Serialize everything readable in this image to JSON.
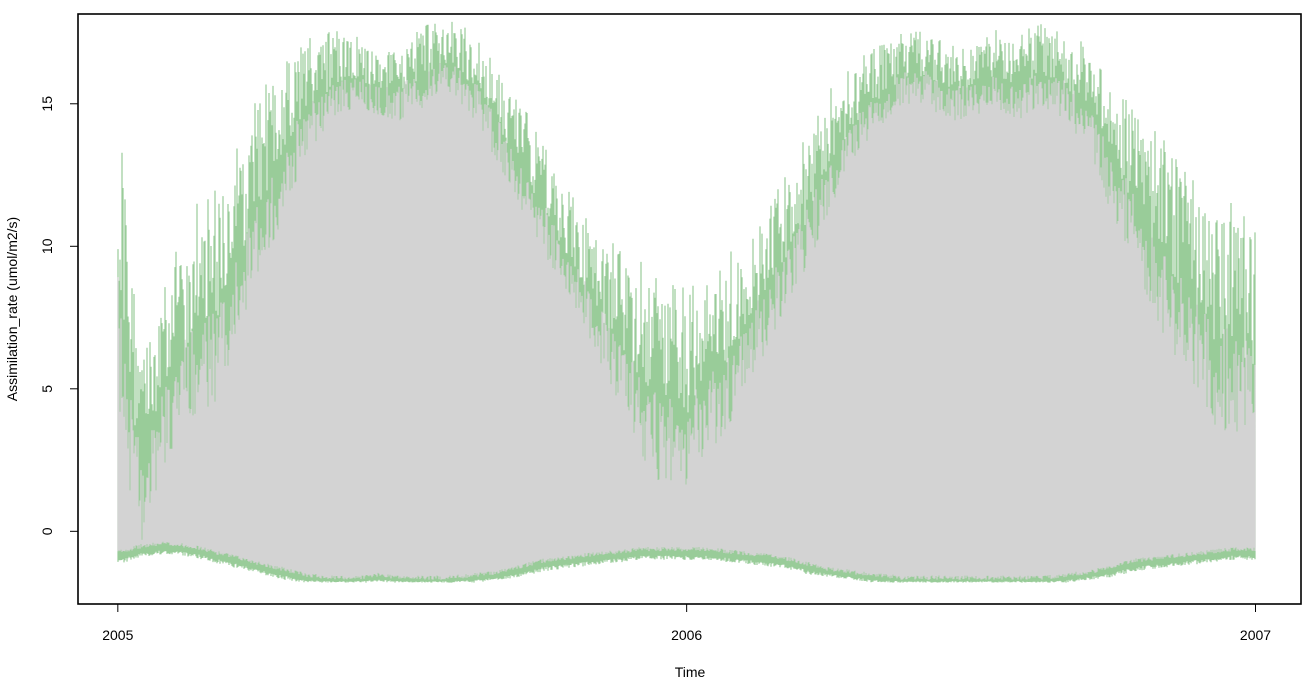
{
  "chart_data": {
    "type": "area",
    "title": "",
    "xlabel": "Time",
    "ylabel": "Assimilation_rate (umol/m2/s)",
    "x_ticks": [
      "2005",
      "2006",
      "2007"
    ],
    "y_ticks": [
      "0",
      "5",
      "10",
      "15"
    ],
    "xlim": [
      2004.93,
      2007.08
    ],
    "ylim": [
      -2.55,
      18.15
    ],
    "grid": false,
    "legend": "none",
    "colors": {
      "upper_band": "#99cc99",
      "inner_band": "#d3d3d3",
      "axis": "#000000"
    },
    "series": [
      {
        "x": [
          2005.0,
          2005.04,
          2005.08,
          2005.13,
          2005.17,
          2005.21,
          2005.25,
          2005.29,
          2005.33,
          2005.38,
          2005.42,
          2005.46,
          2005.5,
          2005.54,
          2005.58,
          2005.63,
          2005.67,
          2005.71,
          2005.75,
          2005.79,
          2005.83,
          2005.88,
          2005.92,
          2005.96,
          2006.0,
          2006.04,
          2006.08,
          2006.13,
          2006.17,
          2006.21,
          2006.25,
          2006.29,
          2006.33,
          2006.38,
          2006.42,
          2006.46,
          2006.5,
          2006.54,
          2006.58,
          2006.63,
          2006.67,
          2006.71,
          2006.75,
          2006.79,
          2006.83,
          2006.88,
          2006.92,
          2006.96,
          2007.0
        ],
        "max": [
          15.8,
          7.0,
          8.5,
          11.5,
          12.0,
          13.5,
          15.5,
          16.5,
          17.5,
          17.8,
          17.5,
          17.0,
          17.5,
          17.8,
          18.0,
          17.5,
          16.5,
          15.0,
          14.0,
          12.0,
          11.0,
          10.0,
          9.5,
          9.0,
          8.5,
          9.0,
          10.0,
          11.5,
          12.5,
          14.0,
          15.5,
          16.5,
          17.0,
          17.5,
          17.8,
          17.5,
          17.0,
          17.8,
          17.5,
          18.0,
          17.5,
          17.0,
          16.0,
          15.0,
          14.0,
          13.0,
          12.0,
          12.0,
          11.0
        ],
        "upper": [
          6.0,
          1.0,
          3.5,
          5.5,
          6.0,
          8.0,
          10.5,
          12.0,
          14.0,
          15.0,
          15.5,
          15.0,
          15.0,
          15.5,
          16.0,
          15.0,
          13.5,
          12.0,
          10.5,
          9.0,
          7.5,
          5.5,
          4.0,
          3.0,
          3.0,
          4.0,
          5.0,
          7.0,
          8.5,
          10.0,
          12.0,
          13.5,
          14.5,
          15.5,
          15.5,
          15.0,
          15.0,
          15.5,
          15.0,
          15.5,
          15.0,
          14.0,
          12.0,
          10.5,
          8.5,
          7.0,
          5.5,
          5.0,
          4.5
        ],
        "lower": [
          -0.8,
          -0.6,
          -0.5,
          -0.6,
          -0.8,
          -1.0,
          -1.2,
          -1.4,
          -1.6,
          -1.7,
          -1.7,
          -1.6,
          -1.7,
          -1.7,
          -1.7,
          -1.6,
          -1.5,
          -1.3,
          -1.1,
          -1.0,
          -0.9,
          -0.8,
          -0.7,
          -0.7,
          -0.7,
          -0.7,
          -0.8,
          -0.9,
          -1.0,
          -1.2,
          -1.4,
          -1.5,
          -1.6,
          -1.7,
          -1.7,
          -1.7,
          -1.7,
          -1.7,
          -1.7,
          -1.7,
          -1.6,
          -1.5,
          -1.3,
          -1.1,
          -1.0,
          -0.9,
          -0.8,
          -0.7,
          -0.7
        ],
        "min": [
          -1.2,
          -0.9,
          -0.8,
          -0.9,
          -1.1,
          -1.3,
          -1.5,
          -1.7,
          -1.8,
          -1.8,
          -1.8,
          -1.8,
          -1.8,
          -1.8,
          -1.8,
          -1.8,
          -1.7,
          -1.6,
          -1.4,
          -1.3,
          -1.2,
          -1.1,
          -1.0,
          -1.0,
          -1.0,
          -1.0,
          -1.1,
          -1.2,
          -1.3,
          -1.5,
          -1.6,
          -1.7,
          -1.8,
          -1.8,
          -1.8,
          -1.8,
          -1.8,
          -1.8,
          -1.8,
          -1.8,
          -1.8,
          -1.7,
          -1.6,
          -1.4,
          -1.3,
          -1.2,
          -1.1,
          -1.0,
          -1.0
        ]
      }
    ]
  }
}
